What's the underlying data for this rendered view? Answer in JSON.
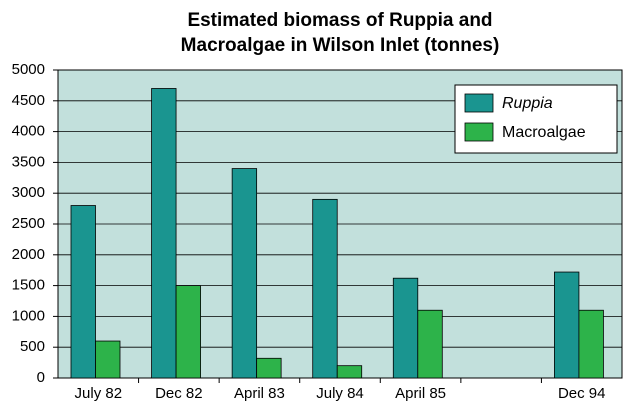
{
  "chart_data": {
    "type": "bar",
    "title": [
      "Estimated biomass of Ruppia and",
      "Macroalgae in Wilson Inlet (tonnes)"
    ],
    "categories": [
      "July 82",
      "Dec 82",
      "April 83",
      "July 84",
      "April 85",
      null,
      "Dec 94"
    ],
    "series": [
      {
        "name": "Ruppia",
        "color": "#1a9590",
        "values": [
          2800,
          4700,
          3400,
          2900,
          1620,
          null,
          1720
        ]
      },
      {
        "name": "Macroalgae",
        "color": "#2db34a",
        "values": [
          600,
          1500,
          320,
          200,
          1100,
          null,
          1100
        ]
      }
    ],
    "ylim": [
      0,
      5000
    ],
    "yticks": [
      0,
      500,
      1000,
      1500,
      2000,
      2500,
      3000,
      3500,
      4000,
      4500,
      5000
    ],
    "grid": true,
    "legend": "upper right"
  }
}
